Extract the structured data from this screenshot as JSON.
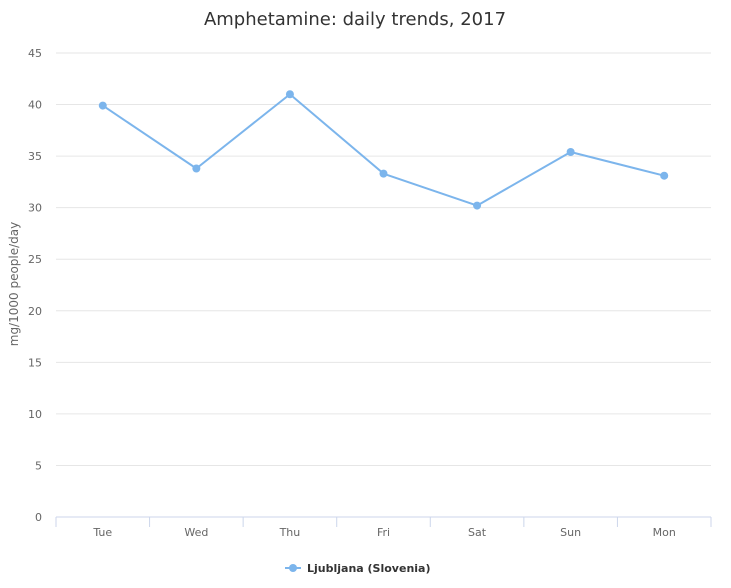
{
  "chart_data": {
    "type": "line",
    "title": "Amphetamine: daily trends, 2017",
    "xlabel": "",
    "ylabel": "mg/1000 people/day",
    "categories": [
      "Tue",
      "Wed",
      "Thu",
      "Fri",
      "Sat",
      "Sun",
      "Mon"
    ],
    "ylim": [
      0,
      45
    ],
    "yticks": [
      0,
      5,
      10,
      15,
      20,
      25,
      30,
      35,
      40,
      45
    ],
    "grid": true,
    "legend_position": "bottom-center",
    "series": [
      {
        "name": "Ljubljana (Slovenia)",
        "color": "#7cb5ec",
        "values": [
          39.9,
          33.8,
          41.0,
          33.3,
          30.2,
          35.4,
          33.1
        ]
      }
    ]
  }
}
